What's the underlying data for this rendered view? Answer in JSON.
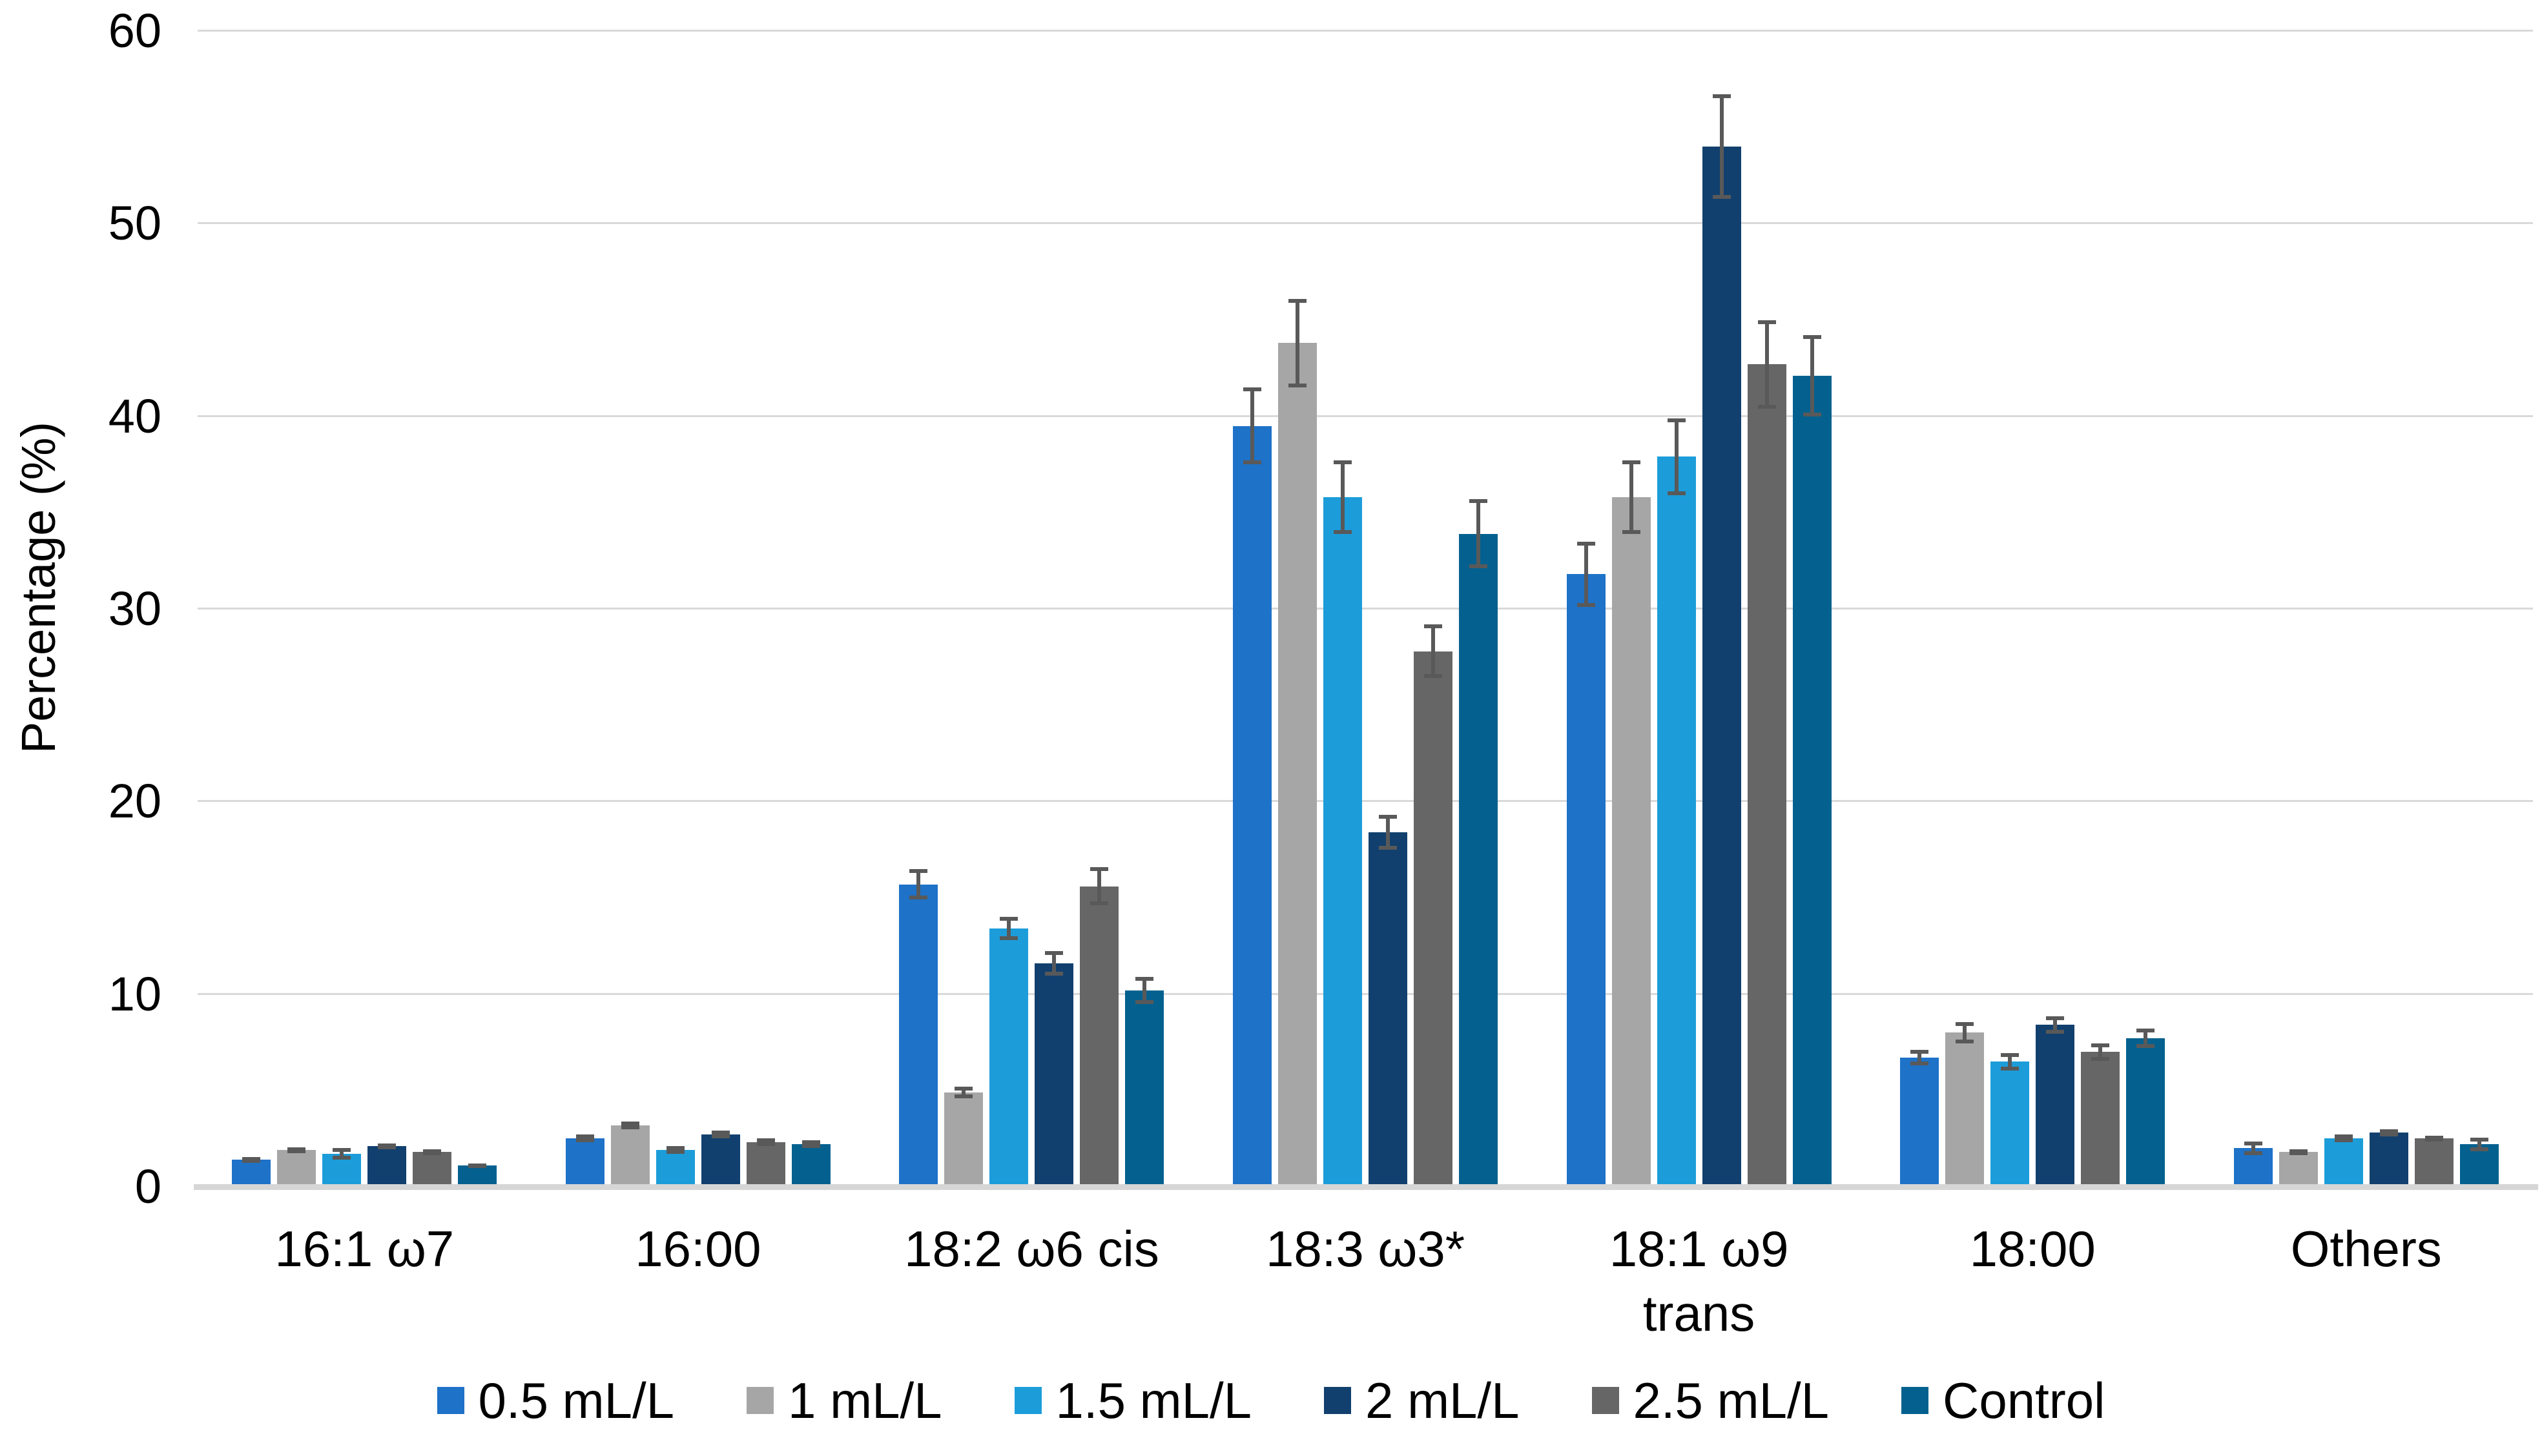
{
  "chart_data": {
    "type": "bar",
    "title": "",
    "xlabel": "",
    "ylabel": "Percentage (%)",
    "ylim": [
      0,
      60
    ],
    "yticks": [
      0,
      10,
      20,
      30,
      40,
      50,
      60
    ],
    "grid": "horizontal",
    "gridline_color": "#d9d9d9",
    "error_bar_color": "#595959",
    "legend_position": "bottom",
    "categories": [
      "16:1 ω7",
      "16:00",
      "18:2 ω6 cis",
      "18:3 ω3*",
      "18:1 ω9\ntrans",
      "18:00",
      "Others"
    ],
    "series": [
      {
        "name": "0.5 mL/L",
        "color": "#1E72C8",
        "values": [
          1.4,
          2.5,
          15.7,
          39.5,
          31.8,
          6.7,
          2.0
        ],
        "errors": [
          0.15,
          0.2,
          0.8,
          2.0,
          1.7,
          0.4,
          0.35
        ]
      },
      {
        "name": "1 mL/L",
        "color": "#A6A6A6",
        "values": [
          1.9,
          3.2,
          4.9,
          43.8,
          35.8,
          8.0,
          1.8
        ],
        "errors": [
          0.15,
          0.2,
          0.3,
          2.3,
          1.9,
          0.55,
          0.15
        ]
      },
      {
        "name": "1.5 mL/L",
        "color": "#1C9DDA",
        "values": [
          1.7,
          1.9,
          13.4,
          35.8,
          37.9,
          6.5,
          2.5
        ],
        "errors": [
          0.3,
          0.2,
          0.6,
          1.9,
          2.0,
          0.45,
          0.2
        ]
      },
      {
        "name": "2 mL/L",
        "color": "#11406E",
        "values": [
          2.1,
          2.7,
          11.6,
          18.4,
          54.0,
          8.4,
          2.8
        ],
        "errors": [
          0.15,
          0.2,
          0.65,
          0.9,
          2.7,
          0.45,
          0.2
        ]
      },
      {
        "name": "2.5 mL/L",
        "color": "#666666",
        "values": [
          1.8,
          2.3,
          15.6,
          27.8,
          42.7,
          7.0,
          2.5
        ],
        "errors": [
          0.15,
          0.2,
          1.0,
          1.4,
          2.3,
          0.45,
          0.15
        ]
      },
      {
        "name": "Control",
        "color": "#04618F",
        "values": [
          1.1,
          2.2,
          10.2,
          33.9,
          42.1,
          7.7,
          2.2
        ],
        "errors": [
          0.12,
          0.2,
          0.7,
          1.8,
          2.1,
          0.5,
          0.35
        ]
      }
    ]
  }
}
